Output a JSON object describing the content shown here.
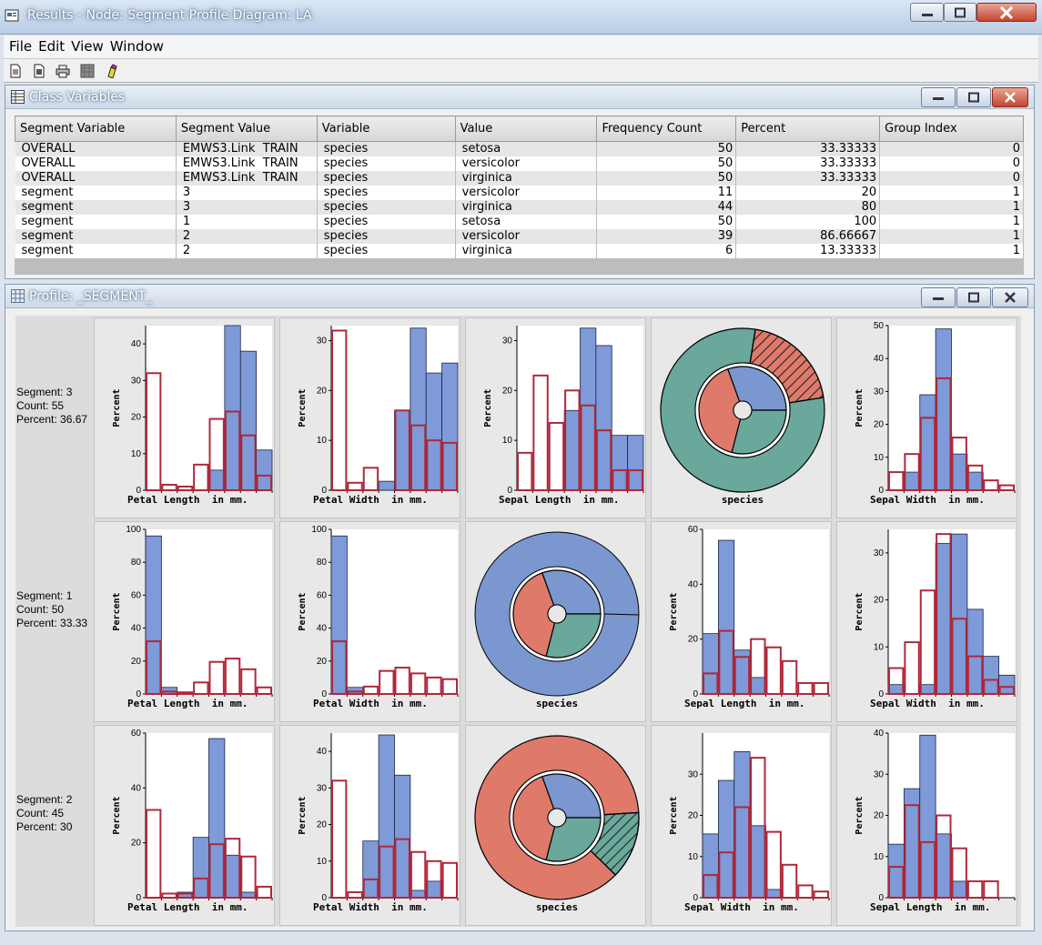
{
  "window": {
    "title": "Results - Node: Segment Profile  Diagram: LA"
  },
  "menu": [
    "File",
    "Edit",
    "View",
    "Window"
  ],
  "toolbar": [
    "new-icon",
    "open-icon",
    "print-icon",
    "grid-icon",
    "highlight-icon"
  ],
  "class_vars": {
    "title": "Class Variables",
    "columns": [
      "Segment Variable",
      "Segment Value",
      "Variable",
      "Value",
      "Frequency Count",
      "Percent",
      "Group Index"
    ],
    "rows": [
      [
        "OVERALL",
        "EMWS3.Link  TRAIN",
        "species",
        "setosa",
        "50",
        "33.33333",
        "0"
      ],
      [
        "OVERALL",
        "EMWS3.Link  TRAIN",
        "species",
        "versicolor",
        "50",
        "33.33333",
        "0"
      ],
      [
        "OVERALL",
        "EMWS3.Link  TRAIN",
        "species",
        "virginica",
        "50",
        "33.33333",
        "0"
      ],
      [
        "segment",
        "3",
        "species",
        "versicolor",
        "11",
        "20",
        "1"
      ],
      [
        "segment",
        "3",
        "species",
        "virginica",
        "44",
        "80",
        "1"
      ],
      [
        "segment",
        "1",
        "species",
        "setosa",
        "50",
        "100",
        "1"
      ],
      [
        "segment",
        "2",
        "species",
        "versicolor",
        "39",
        "86.66667",
        "1"
      ],
      [
        "segment",
        "2",
        "species",
        "virginica",
        "6",
        "13.33333",
        "1"
      ]
    ]
  },
  "profile_window": {
    "title": "Profile: _SEGMENT_"
  },
  "colors": {
    "bar": "#7e9ad8",
    "outline": "#b0283a",
    "green": "#69a89b",
    "red": "#df7a6a",
    "blue": "#7b97d0"
  },
  "segments": [
    {
      "label": [
        "Segment: 3",
        "Count: 55",
        "Percent: 36.67"
      ]
    },
    {
      "label": [
        "Segment: 1",
        "Count: 50",
        "Percent: 33.33"
      ]
    },
    {
      "label": [
        "Segment: 2",
        "Count: 45",
        "Percent: 30"
      ]
    }
  ],
  "chart_data": [
    {
      "type": "bar",
      "segment": "3",
      "xlabel": "Petal Length  in mm.",
      "ylabel": "Percent",
      "ylim": [
        0,
        45
      ],
      "yticks": [
        0,
        10,
        20,
        30,
        40
      ],
      "segment_values": [
        0,
        0,
        0,
        0,
        5.5,
        45,
        38,
        11
      ],
      "overall_values": [
        32,
        1.5,
        1,
        7,
        19.5,
        21.5,
        15,
        4
      ]
    },
    {
      "type": "bar",
      "segment": "3",
      "xlabel": "Petal Width  in mm.",
      "ylabel": "Percent",
      "ylim": [
        0,
        33
      ],
      "yticks": [
        0,
        10,
        20,
        30
      ],
      "segment_values": [
        0,
        0,
        0,
        1.8,
        16,
        32.5,
        23.5,
        25.5
      ],
      "overall_values": [
        32,
        1.5,
        4.5,
        0,
        16,
        13,
        10,
        9.5
      ]
    },
    {
      "type": "bar",
      "segment": "3",
      "xlabel": "Sepal Length  in mm.",
      "ylabel": "Percent",
      "ylim": [
        0,
        33
      ],
      "yticks": [
        0,
        10,
        20,
        30
      ],
      "segment_values": [
        0,
        0,
        0,
        16,
        32.5,
        29,
        11,
        11
      ],
      "overall_values": [
        7.5,
        23,
        13.5,
        20,
        17,
        12,
        4,
        4
      ]
    },
    {
      "type": "pie",
      "segment": "3",
      "xlabel": "species",
      "outer": [
        {
          "value": 80,
          "color": "green"
        },
        {
          "value": 20,
          "color": "red",
          "hatched": true
        }
      ],
      "inner": [
        {
          "value": 33.33,
          "color": "blue"
        },
        {
          "value": 33.33,
          "color": "green"
        },
        {
          "value": 33.33,
          "color": "red"
        }
      ]
    },
    {
      "type": "bar",
      "segment": "3",
      "xlabel": "Sepal Width  in mm.",
      "ylabel": "Percent",
      "ylim": [
        0,
        50
      ],
      "yticks": [
        0,
        10,
        20,
        30,
        40,
        50
      ],
      "segment_values": [
        0,
        5.5,
        29,
        49,
        11,
        5.5,
        0,
        0
      ],
      "overall_values": [
        5.5,
        11,
        22,
        34,
        16,
        7.5,
        3,
        1.5
      ]
    },
    {
      "type": "bar",
      "segment": "1",
      "xlabel": "Petal Length  in mm.",
      "ylabel": "Percent",
      "ylim": [
        0,
        100
      ],
      "yticks": [
        0,
        20,
        40,
        60,
        80,
        100
      ],
      "segment_values": [
        96,
        4,
        0,
        0,
        0,
        0,
        0,
        0
      ],
      "overall_values": [
        32,
        1.5,
        1,
        7,
        19.5,
        21.5,
        15,
        4
      ]
    },
    {
      "type": "bar",
      "segment": "1",
      "xlabel": "Petal Width  in mm.",
      "ylabel": "Percent",
      "ylim": [
        0,
        100
      ],
      "yticks": [
        0,
        20,
        40,
        60,
        80,
        100
      ],
      "segment_values": [
        96,
        4,
        0,
        0,
        0,
        0,
        0,
        0
      ],
      "overall_values": [
        32,
        1.5,
        4.5,
        14,
        16,
        12.5,
        10,
        9
      ]
    },
    {
      "type": "pie",
      "segment": "1",
      "xlabel": "species",
      "outer": [
        {
          "value": 100,
          "color": "blue"
        }
      ],
      "inner": [
        {
          "value": 33.33,
          "color": "blue"
        },
        {
          "value": 33.33,
          "color": "green"
        },
        {
          "value": 33.33,
          "color": "red"
        }
      ]
    },
    {
      "type": "bar",
      "segment": "1",
      "xlabel": "Sepal Length  in mm.",
      "ylabel": "Percent",
      "ylim": [
        0,
        60
      ],
      "yticks": [
        0,
        20,
        40,
        60
      ],
      "segment_values": [
        22,
        56,
        16,
        6,
        0,
        0,
        0,
        0
      ],
      "overall_values": [
        7.5,
        23,
        13.5,
        20,
        17,
        12,
        4,
        4
      ]
    },
    {
      "type": "bar",
      "segment": "1",
      "xlabel": "Sepal Width  in mm.",
      "ylabel": "Percent",
      "ylim": [
        0,
        35
      ],
      "yticks": [
        0,
        10,
        20,
        30
      ],
      "segment_values": [
        2,
        0,
        2,
        32,
        34,
        18,
        8,
        4
      ],
      "overall_values": [
        5.5,
        11,
        22,
        34,
        16,
        8,
        3,
        1.5
      ]
    },
    {
      "type": "bar",
      "segment": "2",
      "xlabel": "Petal Length  in mm.",
      "ylabel": "Percent",
      "ylim": [
        0,
        60
      ],
      "yticks": [
        0,
        20,
        40,
        60
      ],
      "segment_values": [
        0,
        0,
        2,
        22,
        58,
        15.5,
        2,
        0
      ],
      "overall_values": [
        32,
        1.5,
        1.5,
        7,
        19.5,
        21.5,
        15,
        4
      ]
    },
    {
      "type": "bar",
      "segment": "2",
      "xlabel": "Petal Width  in mm.",
      "ylabel": "Percent",
      "ylim": [
        0,
        45
      ],
      "yticks": [
        0,
        10,
        20,
        30,
        40
      ],
      "segment_values": [
        0,
        0,
        15.5,
        44.5,
        33.5,
        2,
        4.5,
        0
      ],
      "overall_values": [
        32,
        1.5,
        5,
        14,
        16,
        12.5,
        10,
        9.5
      ]
    },
    {
      "type": "pie",
      "segment": "2",
      "xlabel": "species",
      "outer": [
        {
          "value": 86.67,
          "color": "red"
        },
        {
          "value": 13.33,
          "color": "green",
          "hatched": true
        }
      ],
      "inner": [
        {
          "value": 33.33,
          "color": "blue"
        },
        {
          "value": 33.33,
          "color": "green"
        },
        {
          "value": 33.33,
          "color": "red"
        }
      ]
    },
    {
      "type": "bar",
      "segment": "2",
      "xlabel": "Sepal Width  in mm.",
      "ylabel": "Percent",
      "ylim": [
        0,
        40
      ],
      "yticks": [
        0,
        10,
        20,
        30
      ],
      "segment_values": [
        15.5,
        28.5,
        35.5,
        17.5,
        2,
        0,
        0,
        0
      ],
      "overall_values": [
        5.5,
        11,
        22,
        34,
        16,
        8,
        3,
        1.5
      ]
    },
    {
      "type": "bar",
      "segment": "2",
      "xlabel": "Sepal Length  in mm.",
      "ylabel": "Percent",
      "ylim": [
        0,
        40
      ],
      "yticks": [
        0,
        10,
        20,
        30,
        40
      ],
      "segment_values": [
        13,
        26.5,
        39.5,
        15.5,
        4,
        0,
        0,
        0
      ],
      "overall_values": [
        7.5,
        22.5,
        13.5,
        20,
        12,
        4,
        4,
        0
      ]
    }
  ]
}
